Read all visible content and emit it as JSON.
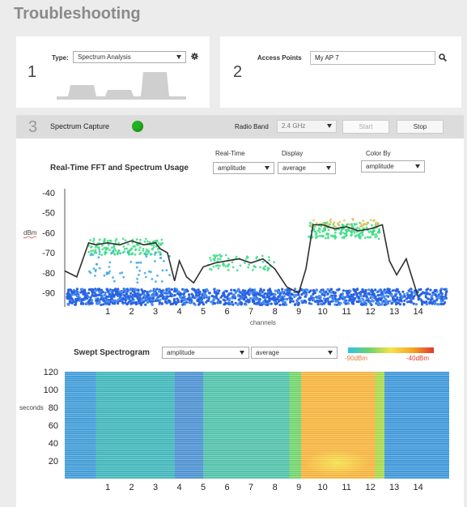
{
  "page": {
    "title": "Troubleshooting"
  },
  "step1": {
    "number": "1",
    "type_label": "Type:",
    "type_value": "Spectrum Analysis",
    "settings_icon": "gear-icon"
  },
  "step2": {
    "number": "2",
    "label": "Access Points",
    "value": "My AP 7",
    "search_icon": "search-icon"
  },
  "step3": {
    "number": "3",
    "label": "Spectrum Capture",
    "status_color": "#22b31f",
    "radio_band_label": "Radio Band",
    "radio_band_value": "2.4 GHz",
    "start_label": "Start",
    "stop_label": "Stop"
  },
  "fft": {
    "title": "Real-Time FFT and Spectrum Usage",
    "realtime_label": "Real-Time",
    "realtime_value": "amplitude",
    "display_label": "Display",
    "display_value": "average",
    "colorby_label": "Color By",
    "colorby_value": "amplitude"
  },
  "spectrogram": {
    "title": "Swept Spectrogram",
    "amplitude_value": "amplitude",
    "average_value": "average",
    "scale_min_label": "-90dBm",
    "scale_max_label": "-40dBm",
    "scale_colors": [
      "#2cc3e8",
      "#6fd36a",
      "#f7e24a",
      "#f5a623",
      "#e03a2f"
    ]
  },
  "chart_data": [
    {
      "type": "scatter",
      "xlabel": "channels",
      "ylabel": "dBm",
      "x_ticks": [
        1,
        2,
        3,
        4,
        5,
        6,
        7,
        8,
        9,
        10,
        11,
        12,
        13,
        14
      ],
      "y_ticks": [
        -40,
        -50,
        -60,
        -70,
        -80,
        -90
      ],
      "xlim": [
        -0.8,
        15.3
      ],
      "ylim": [
        -97,
        -38
      ],
      "grid": false,
      "series": [
        {
          "values_x": [
            -0.8,
            -0.3,
            0.2,
            0.5,
            1.0,
            1.5,
            2.0,
            2.5,
            3.0,
            3.2,
            3.5,
            3.8,
            4.0,
            4.3,
            4.6,
            5.0,
            5.5,
            6.0,
            6.5,
            7.0,
            7.5,
            8.0,
            8.5,
            9.0,
            9.3,
            9.6,
            10.0,
            10.5,
            11.0,
            11.5,
            12.0,
            12.5,
            12.8,
            13.1,
            13.5,
            14.0
          ],
          "values_y": [
            -79,
            -82,
            -65,
            -66,
            -65,
            -66,
            -64,
            -66,
            -65,
            -68,
            -70,
            -84,
            -74,
            -82,
            -85,
            -77,
            -75,
            -74,
            -73,
            -75,
            -73,
            -78,
            -87,
            -90,
            -78,
            -56,
            -56,
            -58,
            -57,
            -59,
            -58,
            -56,
            -74,
            -81,
            -73,
            -92
          ]
        }
      ]
    },
    {
      "type": "heatmap",
      "x_ticks": [
        1,
        2,
        3,
        4,
        5,
        6,
        7,
        8,
        9,
        10,
        11,
        12,
        13,
        14
      ],
      "y_ticks": [
        20,
        40,
        60,
        80,
        100,
        120
      ],
      "ylabel": "seconds",
      "xlim": [
        -0.8,
        15.3
      ],
      "ylim": [
        0,
        120
      ],
      "bands": [
        {
          "x_from": -0.8,
          "x_to": 0.5,
          "color": "#3d9ad6"
        },
        {
          "x_from": 0.5,
          "x_to": 3.8,
          "color": "#3db5b8"
        },
        {
          "x_from": 3.8,
          "x_to": 5.0,
          "color": "#4a8fd0"
        },
        {
          "x_from": 5.0,
          "x_to": 8.6,
          "color": "#4ec0a8"
        },
        {
          "x_from": 8.6,
          "x_to": 9.1,
          "color": "#6fd36a"
        },
        {
          "x_from": 9.1,
          "x_to": 12.2,
          "color": "#f5b23a"
        },
        {
          "x_from": 12.2,
          "x_to": 12.6,
          "color": "#a8d848"
        },
        {
          "x_from": 12.6,
          "x_to": 15.3,
          "color": "#3a95d8"
        }
      ]
    }
  ]
}
